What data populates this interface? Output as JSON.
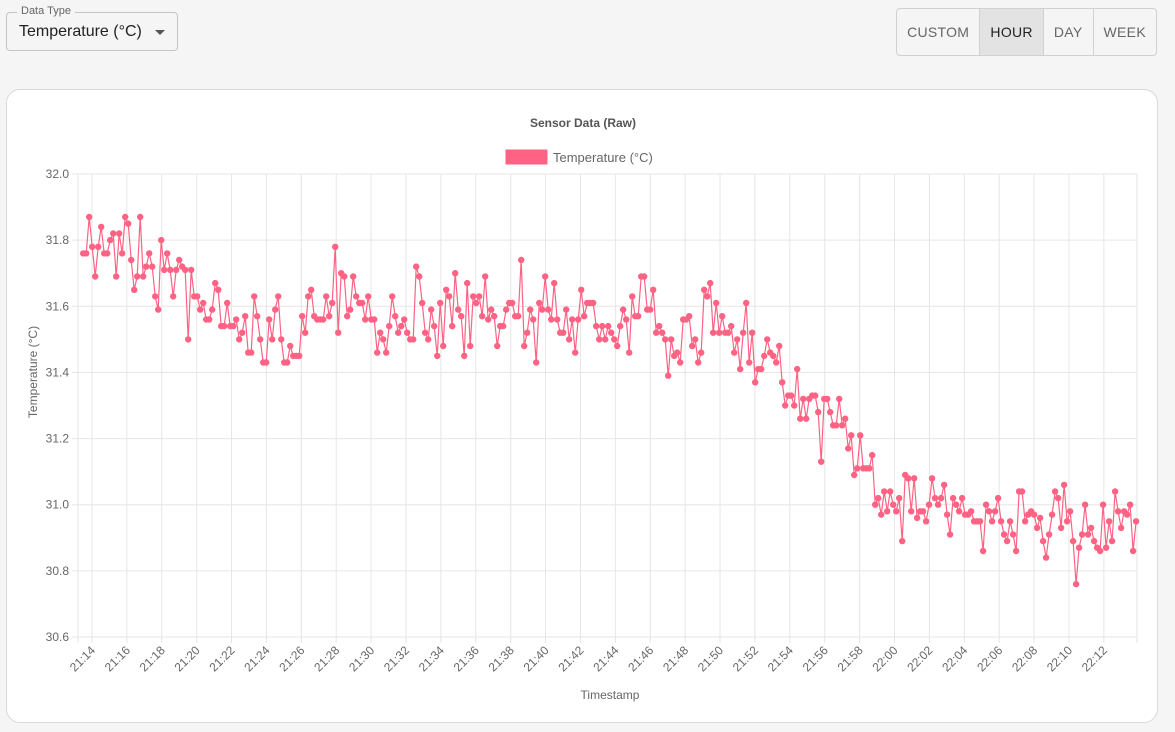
{
  "data_type": {
    "legend": "Data Type",
    "value": "Temperature (°C)"
  },
  "ranges": [
    {
      "label": "CUSTOM",
      "active": false
    },
    {
      "label": "HOUR",
      "active": true
    },
    {
      "label": "DAY",
      "active": false
    },
    {
      "label": "WEEK",
      "active": false
    }
  ],
  "chart_data": {
    "type": "line",
    "title": "Sensor Data (Raw)",
    "xlabel": "Timestamp",
    "ylabel": "Temperature (°C)",
    "ylim": [
      30.6,
      32.0
    ],
    "yticks": [
      "32.0",
      "31.8",
      "31.6",
      "31.4",
      "31.2",
      "31.0",
      "30.8",
      "30.6"
    ],
    "xticks": [
      "21:14",
      "21:16",
      "21:18",
      "21:20",
      "21:22",
      "21:24",
      "21:26",
      "21:28",
      "21:30",
      "21:32",
      "21:34",
      "21:36",
      "21:38",
      "21:40",
      "21:42",
      "21:44",
      "21:46",
      "21:48",
      "21:50",
      "21:52",
      "21:54",
      "21:56",
      "21:58",
      "22:00",
      "22:02",
      "22:04",
      "22:06",
      "22:08",
      "22:10",
      "22:12"
    ],
    "xrange_minutes": [
      "21:13.2",
      "22:13.9"
    ],
    "grid": true,
    "legend_position": "top-center",
    "series": [
      {
        "name": "Temperature (°C)",
        "color": "#ff6384",
        "values": [
          31.76,
          31.76,
          31.87,
          31.78,
          31.69,
          31.78,
          31.84,
          31.76,
          31.76,
          31.8,
          31.82,
          31.69,
          31.82,
          31.76,
          31.87,
          31.85,
          31.74,
          31.65,
          31.69,
          31.87,
          31.69,
          31.72,
          31.76,
          31.72,
          31.63,
          31.59,
          31.8,
          31.71,
          31.76,
          31.71,
          31.63,
          31.71,
          31.74,
          31.72,
          31.71,
          31.5,
          31.71,
          31.63,
          31.63,
          31.59,
          31.61,
          31.56,
          31.56,
          31.59,
          31.67,
          31.65,
          31.54,
          31.54,
          31.61,
          31.54,
          31.54,
          31.56,
          31.5,
          31.52,
          31.57,
          31.46,
          31.46,
          31.63,
          31.57,
          31.5,
          31.43,
          31.43,
          31.56,
          31.5,
          31.59,
          31.63,
          31.5,
          31.43,
          31.43,
          31.48,
          31.45,
          31.45,
          31.45,
          31.57,
          31.52,
          31.63,
          31.65,
          31.57,
          31.56,
          31.56,
          31.56,
          31.63,
          31.57,
          31.61,
          31.78,
          31.52,
          31.7,
          31.69,
          31.57,
          31.59,
          31.69,
          31.63,
          31.61,
          31.61,
          31.56,
          31.63,
          31.56,
          31.56,
          31.46,
          31.52,
          31.5,
          31.46,
          31.54,
          31.63,
          31.57,
          31.52,
          31.54,
          31.56,
          31.52,
          31.5,
          31.5,
          31.72,
          31.69,
          31.61,
          31.52,
          31.5,
          31.59,
          31.54,
          31.45,
          31.61,
          31.48,
          31.65,
          31.63,
          31.54,
          31.7,
          31.59,
          31.57,
          31.45,
          31.67,
          31.48,
          31.63,
          31.61,
          31.63,
          31.57,
          31.69,
          31.56,
          31.59,
          31.57,
          31.48,
          31.54,
          31.54,
          31.59,
          31.61,
          31.61,
          31.57,
          31.57,
          31.74,
          31.48,
          31.52,
          31.59,
          31.56,
          31.43,
          31.61,
          31.59,
          31.69,
          31.59,
          31.56,
          31.67,
          31.56,
          31.52,
          31.52,
          31.59,
          31.5,
          31.56,
          31.46,
          31.56,
          31.65,
          31.57,
          31.61,
          31.61,
          31.61,
          31.54,
          31.5,
          31.54,
          31.5,
          31.54,
          31.52,
          31.5,
          31.48,
          31.54,
          31.59,
          31.56,
          31.46,
          31.63,
          31.57,
          31.57,
          31.69,
          31.69,
          31.59,
          31.59,
          31.65,
          31.52,
          31.54,
          31.52,
          31.5,
          31.39,
          31.5,
          31.45,
          31.46,
          31.43,
          31.56,
          31.56,
          31.57,
          31.48,
          31.5,
          31.43,
          31.46,
          31.65,
          31.63,
          31.67,
          31.52,
          31.61,
          31.52,
          31.57,
          31.52,
          31.52,
          31.54,
          31.46,
          31.5,
          31.41,
          31.52,
          31.61,
          31.43,
          31.52,
          31.37,
          31.41,
          31.41,
          31.45,
          31.5,
          31.46,
          31.45,
          31.43,
          31.48,
          31.37,
          31.3,
          31.33,
          31.33,
          31.3,
          31.41,
          31.26,
          31.32,
          31.26,
          31.32,
          31.33,
          31.33,
          31.28,
          31.13,
          31.32,
          31.32,
          31.28,
          31.24,
          31.24,
          31.32,
          31.24,
          31.26,
          31.17,
          31.21,
          31.09,
          31.11,
          31.21,
          31.11,
          31.11,
          31.11,
          31.15,
          31.0,
          31.02,
          30.97,
          31.04,
          30.98,
          31.04,
          31.0,
          30.98,
          31.02,
          30.89,
          31.09,
          31.08,
          30.98,
          31.08,
          30.96,
          30.98,
          30.98,
          30.95,
          31.0,
          31.08,
          31.02,
          31.0,
          31.02,
          31.06,
          30.97,
          30.91,
          31.02,
          31.0,
          30.98,
          31.02,
          30.97,
          30.97,
          30.98,
          30.95,
          30.95,
          30.95,
          30.86,
          31.0,
          30.98,
          30.95,
          30.98,
          31.02,
          30.95,
          30.91,
          30.89,
          30.95,
          30.91,
          30.86,
          31.04,
          31.04,
          30.95,
          30.97,
          30.98,
          30.97,
          30.93,
          30.96,
          30.89,
          30.84,
          30.91,
          30.97,
          31.04,
          31.02,
          30.93,
          31.06,
          30.95,
          30.98,
          30.89,
          30.76,
          30.87,
          30.91,
          31.0,
          30.91,
          30.93,
          30.89,
          30.87,
          30.86,
          31.0,
          30.87,
          30.95,
          30.89,
          31.04,
          30.98,
          30.93,
          30.98,
          30.97,
          31.0,
          30.86,
          30.95
        ]
      }
    ]
  }
}
